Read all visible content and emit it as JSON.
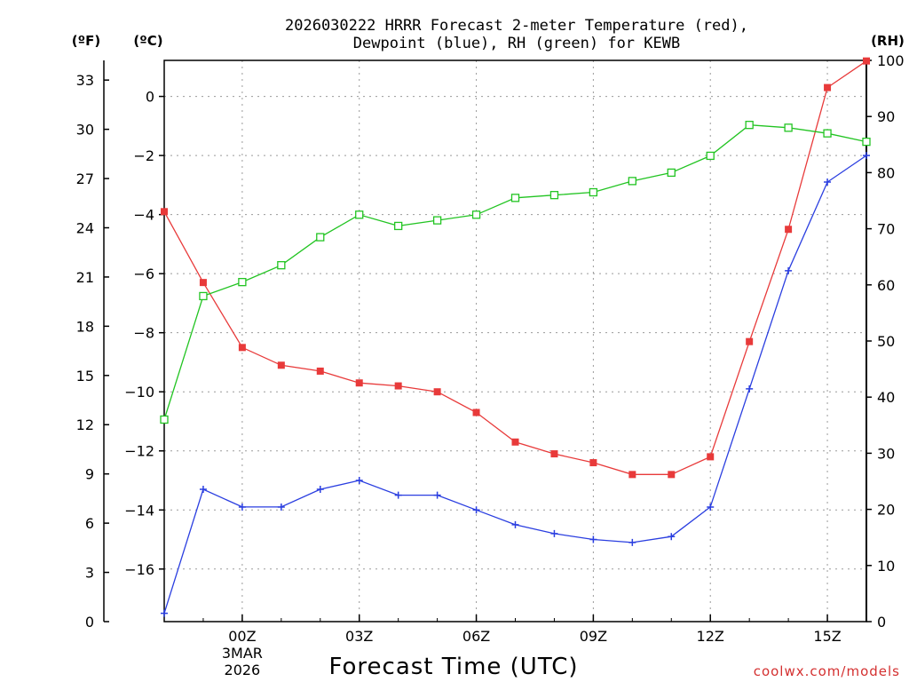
{
  "title_line1": "2026030222 HRRR Forecast 2-meter Temperature (red),",
  "title_line2": "Dewpoint (blue), RH (green) for KEWB",
  "units": {
    "fahrenheit": "(ºF)",
    "celsius": "(ºC)",
    "rh": "(RH)"
  },
  "credit": "coolwx.com/models",
  "colors": {
    "temperature": "#e83a3a",
    "dewpoint": "#2a3ee0",
    "rh": "#22c422",
    "credit": "#d43030"
  },
  "chart_data": {
    "type": "line",
    "xlabel": "Forecast Time (UTC)",
    "x_hours": [
      -2,
      -1,
      0,
      1,
      2,
      3,
      4,
      5,
      6,
      7,
      8,
      9,
      10,
      11,
      12,
      13,
      14,
      15,
      16
    ],
    "xlim": [
      -2,
      16
    ],
    "x_ticks": [
      {
        "hour": 0,
        "label": "00Z",
        "sub1": "3MAR",
        "sub2": "2026"
      },
      {
        "hour": 3,
        "label": "03Z"
      },
      {
        "hour": 6,
        "label": "06Z"
      },
      {
        "hour": 9,
        "label": "09Z"
      },
      {
        "hour": 12,
        "label": "12Z"
      },
      {
        "hour": 15,
        "label": "15Z"
      }
    ],
    "y_left_f": {
      "label": "(ºF)",
      "range": [
        0,
        34.2
      ],
      "ticks": [
        0,
        3,
        6,
        9,
        12,
        15,
        18,
        21,
        24,
        27,
        30,
        33
      ]
    },
    "y_left_c": {
      "label": "(ºC)",
      "range": [
        -17.78,
        1.22
      ],
      "ticks": [
        -16,
        -14,
        -12,
        -10,
        -8,
        -6,
        -4,
        -2,
        0
      ]
    },
    "y_right_rh": {
      "label": "(RH)",
      "range": [
        0,
        100
      ],
      "ticks": [
        0,
        10,
        20,
        30,
        40,
        50,
        60,
        70,
        80,
        90,
        100
      ]
    },
    "series": [
      {
        "name": "2-meter Temperature",
        "unit": "C",
        "color": "#e83a3a",
        "marker": "filled-square",
        "values": [
          -3.9,
          -6.3,
          -8.5,
          -9.1,
          -9.3,
          -9.7,
          -9.8,
          -10.0,
          -10.7,
          -11.7,
          -12.1,
          -12.4,
          -12.8,
          -12.8,
          -12.2,
          -8.3,
          -4.5,
          0.3,
          1.2
        ]
      },
      {
        "name": "Dewpoint",
        "unit": "C",
        "color": "#2a3ee0",
        "marker": "plus",
        "values": [
          -17.5,
          -13.3,
          -13.9,
          -13.9,
          -13.3,
          -13.0,
          -13.5,
          -13.5,
          -14.0,
          -14.5,
          -14.8,
          -15.0,
          -15.1,
          -14.9,
          -13.9,
          -9.9,
          -5.9,
          -2.9,
          -2.0
        ]
      },
      {
        "name": "RH",
        "unit": "%",
        "color": "#22c422",
        "marker": "open-square",
        "values": [
          36,
          58,
          60.5,
          63.5,
          68.5,
          72.5,
          70.5,
          71.5,
          72.5,
          75.5,
          76,
          76.5,
          78.5,
          80,
          83,
          88.5,
          88,
          87,
          85.5
        ]
      }
    ]
  }
}
